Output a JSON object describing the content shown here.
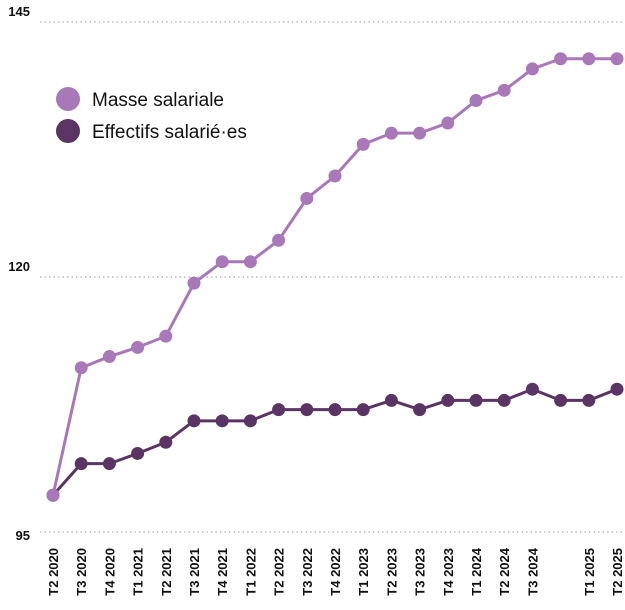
{
  "chart_data": {
    "type": "line",
    "categories": [
      "T2 2020",
      "T3 2020",
      "T4 2020",
      "T1 2021",
      "T2 2021",
      "T3 2021",
      "T4 2021",
      "T1 2022",
      "T2 2022",
      "T3 2022",
      "T4 2022",
      "T1 2023",
      "T2 2023",
      "T3 2023",
      "T4 2023",
      "T1 2024",
      "T2 2024",
      "T3 2024",
      null,
      "T1 2025",
      "T2 2025"
    ],
    "series": [
      {
        "name": "Masse salariale",
        "color": "#a878b8",
        "values": [
          98.6,
          111.1,
          112.2,
          113.1,
          114.2,
          119.4,
          121.5,
          121.5,
          123.6,
          127.7,
          129.9,
          133.0,
          134.1,
          134.1,
          135.1,
          137.3,
          138.3,
          140.4,
          141.4,
          141.4,
          141.4
        ]
      },
      {
        "name": "Effectifs salarié·es",
        "color": "#5a3563",
        "values": [
          98.6,
          101.7,
          101.7,
          102.7,
          103.8,
          105.9,
          105.9,
          105.9,
          107.0,
          107.0,
          107.0,
          107.0,
          107.9,
          107.0,
          107.9,
          107.9,
          107.9,
          109.0,
          107.9,
          107.9,
          109.0
        ]
      }
    ],
    "ylim": [
      95,
      145
    ],
    "yticks": [
      95,
      120,
      145
    ],
    "grid": true,
    "legend": "top-left"
  }
}
